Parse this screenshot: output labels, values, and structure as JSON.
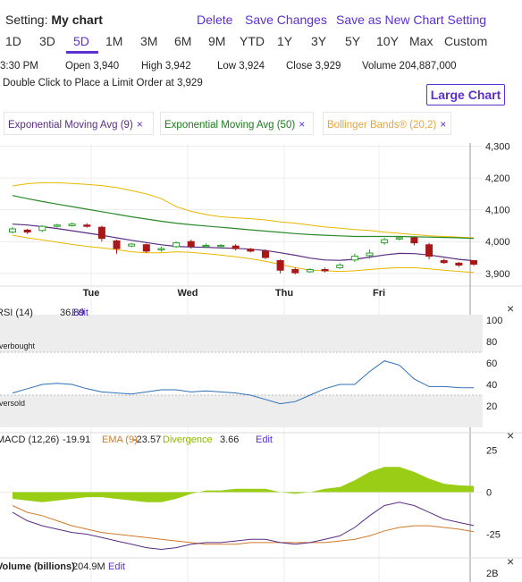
{
  "header": {
    "setting_label": "Setting:",
    "chart_name": "My chart",
    "delete_label": "Delete",
    "save_label": "Save Changes",
    "save_new_label": "Save as New Chart Setting"
  },
  "ranges": [
    {
      "label": "1D"
    },
    {
      "label": "3D"
    },
    {
      "label": "5D",
      "active": true
    },
    {
      "label": "1M"
    },
    {
      "label": "3M"
    },
    {
      "label": "6M"
    },
    {
      "label": "9M"
    },
    {
      "label": "YTD"
    },
    {
      "label": "1Y"
    },
    {
      "label": "3Y"
    },
    {
      "label": "5Y"
    },
    {
      "label": "10Y"
    },
    {
      "label": "Max"
    },
    {
      "label": "Custom"
    }
  ],
  "quote": {
    "time": "3:30 PM",
    "open": "Open 3,940",
    "high": "High 3,942",
    "low": "Low 3,924",
    "close": "Close 3,929",
    "volume": "Volume 204,887,000"
  },
  "hint": "Double Click to Place a Limit Order at 3,929",
  "large_chart_label": "Large Chart",
  "studies": [
    {
      "label": "Exponential Moving Avg (9)",
      "color": "#5a2d82"
    },
    {
      "label": "Exponential Moving Avg (50)",
      "color": "#1a7a1a"
    },
    {
      "label": "Bollinger Bands® (20,2)",
      "color": "#e8a53a"
    }
  ],
  "close_glyph": "×",
  "colors": {
    "accent": "#5b2fd2",
    "up": "#2e9e2e",
    "down": "#a81818",
    "ema9": "#5a2d82",
    "ema50": "#2a8a2a",
    "bollinger": "#e6b800",
    "rsi": "#2f6fb5",
    "macd": "#5a2d82",
    "signal": "#d07a2a",
    "histogram": "#9acd16"
  },
  "chart_data": [
    {
      "type": "line",
      "name": "price",
      "x": [
        "Tue",
        "Wed",
        "Thu",
        "Fri"
      ],
      "x_ticks": [
        "Tue",
        "Wed",
        "Thu",
        "Fri"
      ],
      "y_ticks": [
        "4,300",
        "4,200",
        "4,100",
        "4,000",
        "3,900"
      ],
      "ylim": [
        3860,
        4310
      ],
      "grid": true,
      "candles": [
        {
          "o": 4030,
          "c": 4040,
          "h": 4046,
          "l": 4026
        },
        {
          "o": 4036,
          "c": 4030,
          "h": 4040,
          "l": 4024
        },
        {
          "o": 4035,
          "c": 4048,
          "h": 4052,
          "l": 4030
        },
        {
          "o": 4048,
          "c": 4052,
          "h": 4056,
          "l": 4044
        },
        {
          "o": 4050,
          "c": 4055,
          "h": 4060,
          "l": 4047
        },
        {
          "o": 4052,
          "c": 4048,
          "h": 4058,
          "l": 4044
        },
        {
          "o": 4045,
          "c": 4010,
          "h": 4050,
          "l": 4000
        },
        {
          "o": 4002,
          "c": 3978,
          "h": 4006,
          "l": 3962
        },
        {
          "o": 3986,
          "c": 3992,
          "h": 3996,
          "l": 3982
        },
        {
          "o": 3990,
          "c": 3970,
          "h": 3994,
          "l": 3964
        },
        {
          "o": 3974,
          "c": 3978,
          "h": 3984,
          "l": 3968
        },
        {
          "o": 3984,
          "c": 3996,
          "h": 4000,
          "l": 3980
        },
        {
          "o": 4000,
          "c": 3985,
          "h": 4006,
          "l": 3978
        },
        {
          "o": 3988,
          "c": 3988,
          "h": 3994,
          "l": 3980
        },
        {
          "o": 3988,
          "c": 3988,
          "h": 3992,
          "l": 3980
        },
        {
          "o": 3986,
          "c": 3978,
          "h": 3992,
          "l": 3972
        },
        {
          "o": 3976,
          "c": 3970,
          "h": 3980,
          "l": 3966
        },
        {
          "o": 3970,
          "c": 3950,
          "h": 3976,
          "l": 3945
        },
        {
          "o": 3940,
          "c": 3910,
          "h": 3944,
          "l": 3900
        },
        {
          "o": 3912,
          "c": 3902,
          "h": 3918,
          "l": 3897
        },
        {
          "o": 3905,
          "c": 3912,
          "h": 3916,
          "l": 3902
        },
        {
          "o": 3912,
          "c": 3908,
          "h": 3918,
          "l": 3903
        },
        {
          "o": 3918,
          "c": 3926,
          "h": 3932,
          "l": 3914
        },
        {
          "o": 3942,
          "c": 3954,
          "h": 3962,
          "l": 3936
        },
        {
          "o": 3956,
          "c": 3964,
          "h": 3975,
          "l": 3946
        },
        {
          "o": 3996,
          "c": 4006,
          "h": 4012,
          "l": 3990
        },
        {
          "o": 4008,
          "c": 4012,
          "h": 4016,
          "l": 4004
        },
        {
          "o": 4012,
          "c": 3996,
          "h": 4016,
          "l": 3988
        },
        {
          "o": 3990,
          "c": 3954,
          "h": 3996,
          "l": 3944
        },
        {
          "o": 3940,
          "c": 3934,
          "h": 3946,
          "l": 3930
        },
        {
          "o": 3932,
          "c": 3926,
          "h": 3936,
          "l": 3920
        },
        {
          "o": 3940,
          "c": 3929,
          "h": 3942,
          "l": 3924
        }
      ],
      "ema9": [
        4055,
        4052,
        4047,
        4041,
        4034,
        4027,
        4020,
        4012,
        4004,
        3997,
        3990,
        3985,
        3983,
        3982,
        3980,
        3979,
        3976,
        3972,
        3965,
        3957,
        3948,
        3942,
        3941,
        3944,
        3951,
        3958,
        3963,
        3962,
        3958,
        3951,
        3944,
        3940
      ],
      "ema50": [
        4145,
        4135,
        4126,
        4118,
        4110,
        4102,
        4094,
        4086,
        4078,
        4071,
        4064,
        4058,
        4053,
        4049,
        4045,
        4041,
        4037,
        4033,
        4029,
        4025,
        4022,
        4020,
        4018,
        4016,
        4016,
        4016,
        4016,
        4015,
        4014,
        4013,
        4012,
        4010
      ],
      "bb_upper": [
        4175,
        4182,
        4185,
        4185,
        4183,
        4180,
        4176,
        4170,
        4160,
        4150,
        4135,
        4110,
        4095,
        4085,
        4078,
        4075,
        4072,
        4068,
        4062,
        4058,
        4052,
        4046,
        4042,
        4038,
        4035,
        4030,
        4026,
        4022,
        4018,
        4016,
        4014,
        4012
      ],
      "bb_lower": [
        4020,
        4012,
        4005,
        3998,
        3991,
        3985,
        3980,
        3975,
        3968,
        3965,
        3965,
        3968,
        3966,
        3962,
        3958,
        3952,
        3946,
        3938,
        3928,
        3918,
        3910,
        3908,
        3906,
        3908,
        3912,
        3916,
        3918,
        3918,
        3914,
        3910,
        3906,
        3903
      ]
    },
    {
      "type": "line",
      "name": "rsi",
      "label": "RSI (14)",
      "value_text": "36.89",
      "edit_label": "Edit",
      "overbought_label": "Overbought",
      "oversold_label": "Oversold",
      "y_ticks": [
        "100",
        "80",
        "60",
        "40",
        "20"
      ],
      "ylim": [
        0,
        105
      ],
      "levels": [
        70,
        30
      ],
      "values": [
        32,
        36,
        40,
        41,
        40,
        36,
        33,
        32,
        31,
        33,
        35,
        35,
        33,
        34,
        33,
        32,
        30,
        26,
        22,
        24,
        30,
        36,
        40,
        40,
        52,
        62,
        58,
        45,
        38,
        38,
        37,
        36.89
      ]
    },
    {
      "type": "line",
      "name": "macd",
      "label": "MACD (12,26)",
      "value_text": "-19.91",
      "signal_label": "EMA (9)",
      "signal_text": "-23.57",
      "divergence_label": "Divergence",
      "divergence_text": "3.66",
      "edit_label": "Edit",
      "y_ticks": [
        "25",
        "0",
        "-25"
      ],
      "ylim": [
        -38,
        30
      ],
      "macd": [
        -12,
        -17,
        -20,
        -22,
        -24,
        -25,
        -27,
        -29,
        -31,
        -33,
        -34,
        -33,
        -31,
        -30,
        -30,
        -29,
        -28,
        -28,
        -30,
        -31,
        -30,
        -28,
        -26,
        -21,
        -14,
        -8,
        -6,
        -8,
        -12,
        -16,
        -18,
        -19.91
      ],
      "signal": [
        -8,
        -12,
        -14,
        -17,
        -20,
        -22,
        -24,
        -25,
        -26,
        -27,
        -28,
        -29,
        -30,
        -31,
        -31,
        -31,
        -30,
        -30,
        -30,
        -30,
        -30,
        -30,
        -29,
        -28,
        -26,
        -23,
        -21,
        -20,
        -20,
        -21,
        -22,
        -23.57
      ],
      "histogram": [
        -4,
        -5,
        -6,
        -5,
        -4,
        -3,
        -3,
        -4,
        -5,
        -6,
        -6,
        -4,
        -1,
        1,
        1,
        2,
        2,
        2,
        0,
        -1,
        0,
        2,
        3,
        7,
        12,
        15,
        15,
        12,
        8,
        5,
        4,
        3.66
      ]
    },
    {
      "type": "bar",
      "name": "volume",
      "label": "Volume (billions)",
      "value_text": "204.9M",
      "edit_label": "Edit",
      "y_ticks": [
        "2B"
      ]
    }
  ]
}
